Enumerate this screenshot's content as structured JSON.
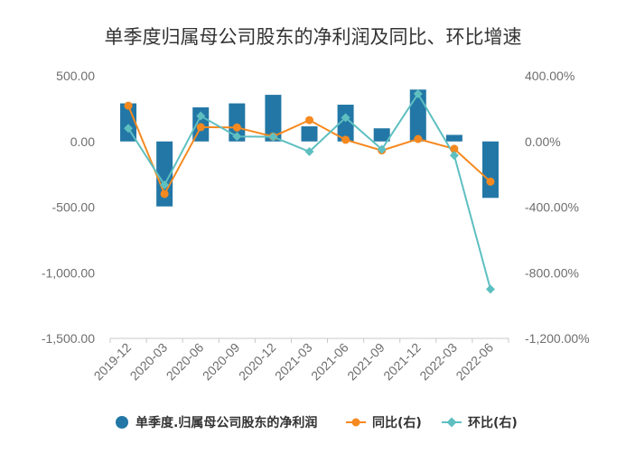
{
  "chart_data": {
    "type": "bar",
    "title": "单季度归属母公司股东的净利润及同比、环比增速",
    "xlabel": "",
    "ylabel": "",
    "categories": [
      "2019-12",
      "2020-03",
      "2020-06",
      "2020-09",
      "2020-12",
      "2021-03",
      "2021-06",
      "2021-09",
      "2021-12",
      "2022-03",
      "2022-06"
    ],
    "series": [
      {
        "name": "单季度.归属母公司股东的净利润",
        "type": "bar",
        "y_axis": "left",
        "color": "#2377a6",
        "values": [
          290,
          -495,
          260,
          290,
          355,
          115,
          280,
          100,
          395,
          50,
          -430
        ]
      },
      {
        "name": "同比(右)",
        "type": "line",
        "y_axis": "right",
        "color": "#f5891f",
        "marker": "circle",
        "values": [
          218,
          -320,
          87,
          85,
          30,
          130,
          10,
          -55,
          15,
          -45,
          -245
        ]
      },
      {
        "name": "环比(右)",
        "type": "line",
        "y_axis": "right",
        "color": "#5ebfc1",
        "marker": "diamond",
        "values": [
          80,
          -265,
          155,
          30,
          28,
          -62,
          145,
          -48,
          290,
          -85,
          -900
        ]
      }
    ],
    "y_left": {
      "range": [
        -1500,
        500
      ],
      "ticks": [
        500,
        0,
        -500,
        -1000,
        -1500
      ],
      "tick_labels": [
        "500.00",
        "0.00",
        "-500.00",
        "-1,000.00",
        "-1,500.00"
      ]
    },
    "y_right": {
      "range": [
        -1200,
        400
      ],
      "ticks": [
        400,
        0,
        -400,
        -800,
        -1200
      ],
      "tick_labels": [
        "400.00%",
        "0.00%",
        "-400.00%",
        "-800.00%",
        "-1,200.00%"
      ]
    },
    "legend": "bottom",
    "grid": false
  }
}
